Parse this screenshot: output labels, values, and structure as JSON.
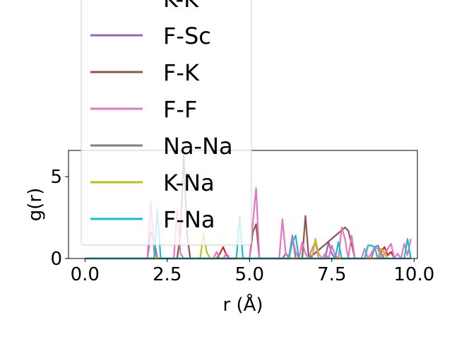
{
  "chart_data": {
    "type": "line",
    "title": "",
    "xlabel": "r (Å)",
    "ylabel": "g(r)",
    "xlim": [
      -0.5,
      10.1
    ],
    "ylim": [
      0,
      6.6
    ],
    "xticks": [
      0.0,
      2.5,
      5.0,
      7.5,
      10.0
    ],
    "xtick_labels": [
      "0.0",
      "2.5",
      "5.0",
      "7.5",
      "10.0"
    ],
    "yticks": [
      0,
      5
    ],
    "ytick_labels": [
      "0",
      "5"
    ],
    "grid": false,
    "legend_placement": "upper-left, overlapping plot",
    "series": [
      {
        "name": "K-K",
        "color": "#d62728",
        "x": [
          0,
          4.0,
          4.1,
          4.2,
          4.3,
          4.4,
          8.9,
          9.0,
          9.1,
          9.2,
          9.3,
          9.4
        ],
        "y": [
          0,
          0,
          0.3,
          0.7,
          0.2,
          0,
          0,
          0.4,
          0.7,
          0.2,
          0.4,
          0
        ]
      },
      {
        "name": "F-Sc",
        "color": "#9467bd",
        "x": [
          0,
          1.9,
          2.0,
          2.1,
          2.2,
          6.0,
          6.1,
          6.2,
          6.3,
          6.4,
          7.3,
          7.4,
          7.5,
          7.6,
          8.7,
          8.8,
          8.9,
          9.0,
          9.1
        ],
        "y": [
          0,
          0,
          1.6,
          1.1,
          0,
          0,
          0.3,
          0.1,
          1.4,
          0,
          0,
          1.0,
          0.3,
          0,
          0,
          0.7,
          0.8,
          0.3,
          0
        ]
      },
      {
        "name": "F-K",
        "color": "#8c564b",
        "x": [
          0,
          2.8,
          2.9,
          3.0,
          3.1,
          3.2,
          5.0,
          5.1,
          5.2,
          5.3,
          6.6,
          6.7,
          6.8,
          7.9,
          8.0,
          8.1,
          8.2
        ],
        "y": [
          0,
          0,
          1.5,
          6.3,
          1.5,
          0,
          0,
          1.6,
          2.1,
          0,
          0,
          2.6,
          0,
          1.9,
          1.7,
          0.9,
          0
        ]
      },
      {
        "name": "F-F",
        "color": "#e377c2",
        "x": [
          0,
          1.9,
          2.0,
          2.1,
          2.2,
          2.7,
          2.8,
          2.9,
          3.0,
          3.1,
          3.9,
          4.0,
          4.1,
          4.2,
          4.3,
          4.4,
          4.5,
          5.0,
          5.1,
          5.2,
          5.3,
          5.4,
          5.9,
          6.0,
          6.1,
          6.2,
          6.3,
          6.4,
          6.5,
          6.6,
          6.7,
          6.8,
          6.9,
          7.0,
          7.1,
          7.2,
          7.3,
          7.4,
          7.5,
          7.6,
          7.7,
          7.8,
          7.9,
          8.0,
          8.1,
          8.2,
          8.3,
          8.4,
          8.5,
          8.6,
          8.7,
          8.8,
          8.9,
          9.0,
          9.1,
          9.2,
          9.3,
          9.4,
          9.5,
          9.6,
          9.7,
          9.8,
          9.9
        ],
        "y": [
          0,
          0,
          3.5,
          0.4,
          0,
          0,
          3.0,
          0.3,
          0,
          0,
          0,
          0.4,
          0,
          0,
          0.3,
          0,
          0,
          0,
          2.2,
          4.3,
          0,
          0,
          0,
          2.4,
          0.3,
          0,
          1.3,
          0.4,
          0,
          1.0,
          0.3,
          0,
          0.6,
          1.0,
          0,
          0,
          0.3,
          0,
          0.8,
          0.2,
          0,
          1.9,
          1.2,
          0,
          1.4,
          0,
          0,
          0,
          0.6,
          0,
          0.3,
          0.7,
          0.6,
          0,
          0.3,
          0.6,
          0.9,
          0,
          0.3,
          0,
          0.9,
          0.2,
          1.2
        ]
      },
      {
        "name": "Na-Na",
        "color": "#7f7f7f",
        "x": [
          0,
          9.9
        ],
        "y": [
          0,
          0
        ]
      },
      {
        "name": "K-Na",
        "color": "#bcbd22",
        "x": [
          0,
          3.5,
          3.6,
          3.7,
          3.8,
          6.9,
          7.0,
          7.1,
          7.2,
          8.9,
          9.0,
          9.1,
          9.2
        ],
        "y": [
          0,
          0,
          1.5,
          0.4,
          0,
          0,
          1.2,
          0.3,
          0,
          0,
          0.6,
          0.3,
          0
        ]
      },
      {
        "name": "F-Na",
        "color": "#17becf",
        "x": [
          0,
          2.1,
          2.2,
          2.3,
          4.6,
          4.7,
          4.8,
          6.2,
          6.3,
          6.4,
          6.5,
          7.6,
          7.7,
          7.8,
          8.5,
          8.6,
          8.7,
          8.8,
          8.9,
          9.7,
          9.8,
          9.9
        ],
        "y": [
          0,
          0,
          3.0,
          0,
          0,
          2.6,
          0,
          0,
          1.0,
          1.4,
          0,
          0,
          1.0,
          0,
          0,
          0.8,
          0.8,
          0.7,
          0,
          0,
          1.2,
          0
        ]
      }
    ]
  }
}
